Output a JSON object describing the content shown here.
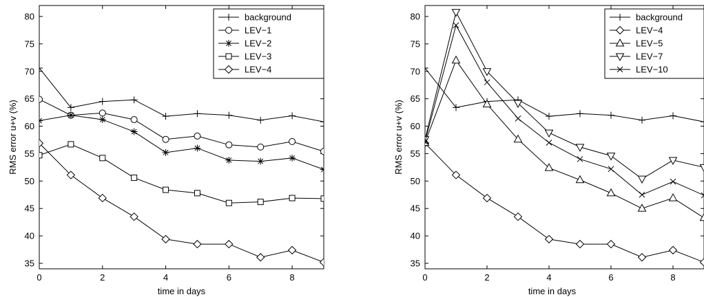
{
  "chart_data": [
    {
      "type": "line",
      "title": "",
      "xlabel": "time in days",
      "ylabel": "RMS error u+v (%)",
      "xlim": [
        0,
        9
      ],
      "ylim": [
        34,
        82
      ],
      "xticks": [
        "0",
        "2",
        "4",
        "6",
        "8"
      ],
      "yticks": [
        "35",
        "40",
        "45",
        "50",
        "55",
        "60",
        "65",
        "70",
        "75",
        "80"
      ],
      "grid": false,
      "legend_position": "top-right",
      "x": [
        0,
        1,
        2,
        3,
        4,
        5,
        6,
        7,
        8,
        9
      ],
      "series": [
        {
          "name": "background",
          "marker": "plus",
          "values": [
            70.6,
            63.4,
            64.5,
            64.8,
            61.8,
            62.3,
            62.0,
            61.1,
            61.9,
            60.8
          ]
        },
        {
          "name": "LEV−1",
          "marker": "circle",
          "values": [
            64.9,
            62.0,
            62.4,
            61.2,
            57.6,
            58.2,
            56.6,
            56.2,
            57.2,
            55.4
          ]
        },
        {
          "name": "LEV−2",
          "marker": "star",
          "values": [
            61.0,
            62.0,
            61.2,
            59.0,
            55.2,
            56.0,
            53.8,
            53.6,
            54.2,
            52.1
          ]
        },
        {
          "name": "LEV−3",
          "marker": "square",
          "values": [
            54.7,
            56.7,
            54.2,
            50.6,
            48.4,
            47.8,
            46.0,
            46.2,
            46.9,
            46.8
          ]
        },
        {
          "name": "LEV−4",
          "marker": "diamond",
          "values": [
            56.9,
            51.1,
            46.9,
            43.5,
            39.4,
            38.5,
            38.5,
            36.1,
            37.4,
            35.2
          ]
        }
      ]
    },
    {
      "type": "line",
      "title": "",
      "xlabel": "time in days",
      "ylabel": "RMS error u+v (%)",
      "xlim": [
        0,
        9
      ],
      "ylim": [
        34,
        82
      ],
      "xticks": [
        "0",
        "2",
        "4",
        "6",
        "8"
      ],
      "yticks": [
        "35",
        "40",
        "45",
        "50",
        "55",
        "60",
        "65",
        "70",
        "75",
        "80"
      ],
      "grid": false,
      "legend_position": "top-right",
      "x": [
        0,
        1,
        2,
        3,
        4,
        5,
        6,
        7,
        8,
        9
      ],
      "series": [
        {
          "name": "background",
          "marker": "plus",
          "values": [
            70.6,
            63.4,
            64.5,
            64.8,
            61.8,
            62.3,
            62.0,
            61.1,
            61.9,
            60.8
          ]
        },
        {
          "name": "LEV−4",
          "marker": "diamond",
          "values": [
            56.9,
            51.1,
            46.9,
            43.5,
            39.4,
            38.5,
            38.5,
            36.1,
            37.4,
            35.2
          ]
        },
        {
          "name": "LEV−5",
          "marker": "triangle-up",
          "values": [
            57.0,
            72.0,
            64.0,
            57.6,
            52.4,
            50.2,
            47.8,
            45.0,
            46.9,
            43.3
          ]
        },
        {
          "name": "LEV−7",
          "marker": "triangle-down",
          "values": [
            57.6,
            80.8,
            70.0,
            64.2,
            58.8,
            56.2,
            54.6,
            50.4,
            53.8,
            52.5
          ]
        },
        {
          "name": "LEV−10",
          "marker": "x",
          "values": [
            57.2,
            78.4,
            68.0,
            61.4,
            57.0,
            54.0,
            52.2,
            47.5,
            49.9,
            47.4
          ]
        }
      ]
    }
  ]
}
